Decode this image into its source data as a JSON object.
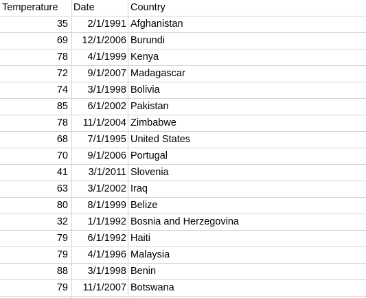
{
  "headers": {
    "temperature": "Temperature",
    "date": "Date",
    "country": "Country"
  },
  "rows": [
    {
      "temperature": "35",
      "date": "2/1/1991",
      "country": "Afghanistan"
    },
    {
      "temperature": "69",
      "date": "12/1/2006",
      "country": "Burundi"
    },
    {
      "temperature": "78",
      "date": "4/1/1999",
      "country": "Kenya"
    },
    {
      "temperature": "72",
      "date": "9/1/2007",
      "country": "Madagascar"
    },
    {
      "temperature": "74",
      "date": "3/1/1998",
      "country": "Bolivia"
    },
    {
      "temperature": "85",
      "date": "6/1/2002",
      "country": "Pakistan"
    },
    {
      "temperature": "78",
      "date": "11/1/2004",
      "country": "Zimbabwe"
    },
    {
      "temperature": "68",
      "date": "7/1/1995",
      "country": "United States"
    },
    {
      "temperature": "70",
      "date": "9/1/2006",
      "country": "Portugal"
    },
    {
      "temperature": "41",
      "date": "3/1/2011",
      "country": "Slovenia"
    },
    {
      "temperature": "63",
      "date": "3/1/2002",
      "country": "Iraq"
    },
    {
      "temperature": "80",
      "date": "8/1/1999",
      "country": "Belize"
    },
    {
      "temperature": "32",
      "date": "1/1/1992",
      "country": "Bosnia and Herzegovina"
    },
    {
      "temperature": "79",
      "date": "6/1/1992",
      "country": "Haiti"
    },
    {
      "temperature": "79",
      "date": "4/1/1996",
      "country": "Malaysia"
    },
    {
      "temperature": "88",
      "date": "3/1/1998",
      "country": "Benin"
    },
    {
      "temperature": "79",
      "date": "11/1/2007",
      "country": "Botswana"
    }
  ]
}
